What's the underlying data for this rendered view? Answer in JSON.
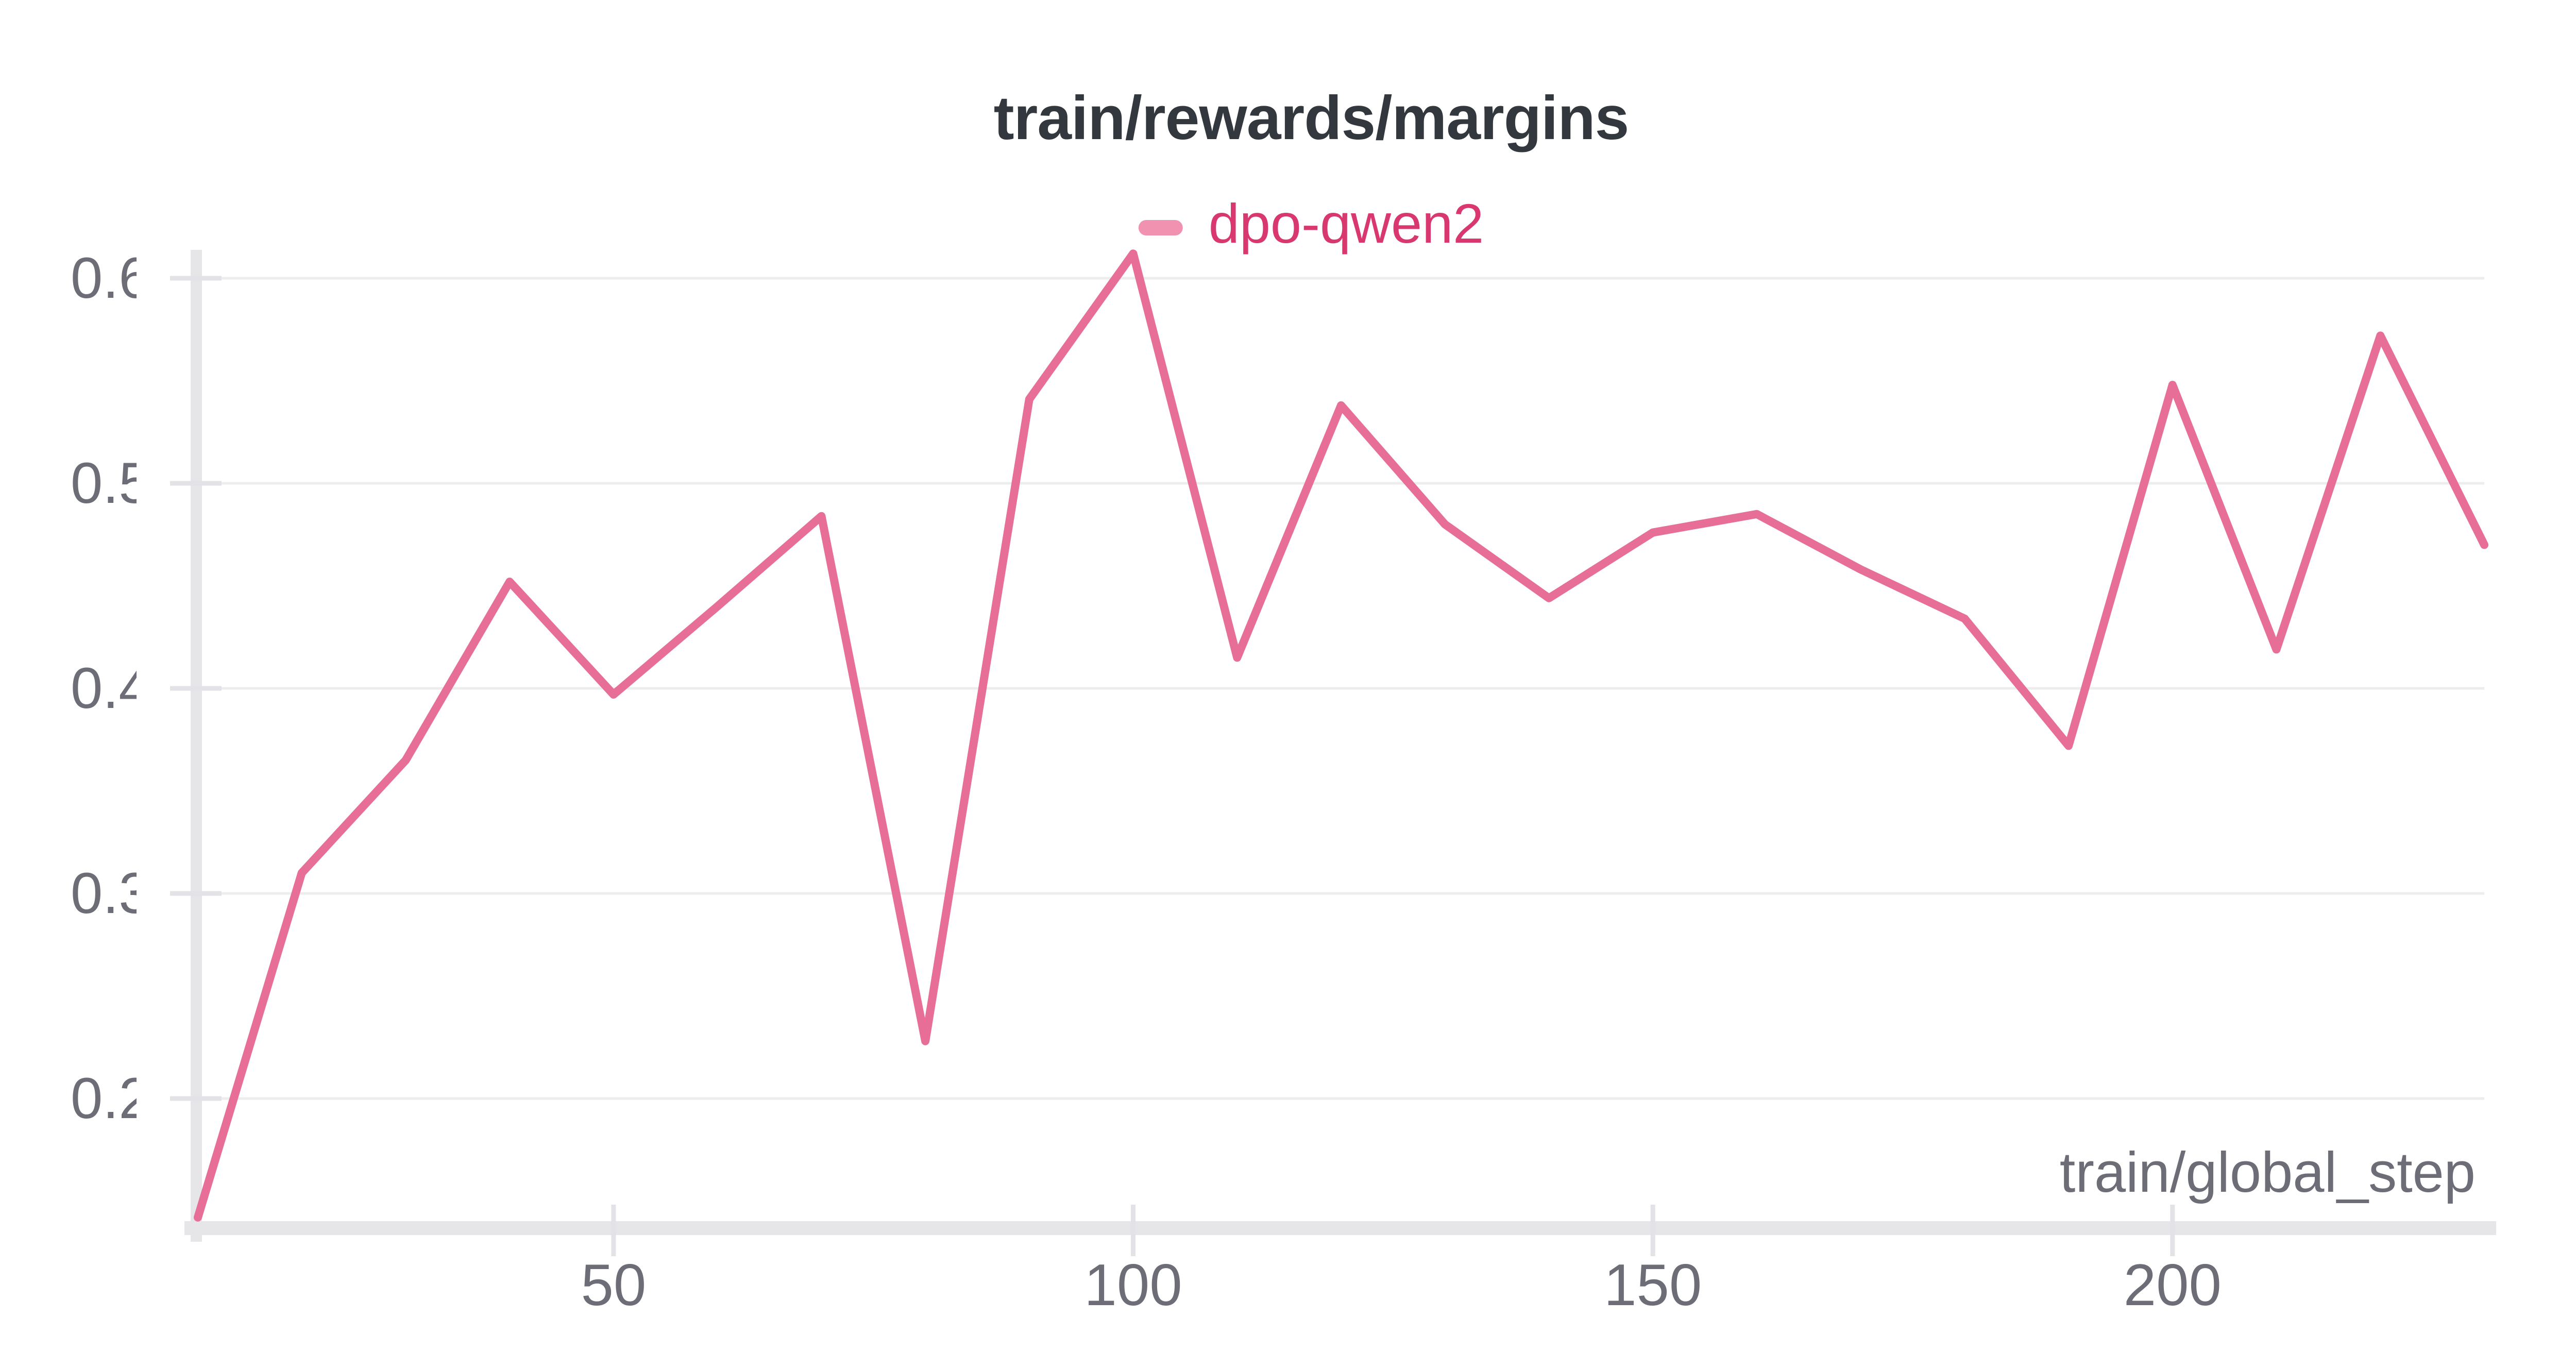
{
  "panel": {
    "title": "train/rewards/margins"
  },
  "legend": {
    "series_label": "dpo-qwen2"
  },
  "axis": {
    "x_title": "train/global_step"
  },
  "colors": {
    "background": "#FFFFFF",
    "title_text": "#33383E",
    "axis_text": "#6D6D78",
    "legend_text": "#D8386F",
    "legend_swatch": "#F192B1",
    "line": "#E66E97",
    "gridline": "#EDEDEF",
    "tick_mark": "#E2E2E7",
    "axis_band": "#E6E6E8"
  },
  "chart_data": {
    "type": "line",
    "title": "train/rewards/margins",
    "xlabel": "train/global_step",
    "ylabel": "",
    "grid": "horizontal-only",
    "legend_position": "top-center",
    "xlim": [
      10,
      230
    ],
    "ylim": [
      0.14,
      0.614
    ],
    "x_ticks": [
      50,
      100,
      150,
      200
    ],
    "y_ticks": [
      0.2,
      0.3,
      0.4,
      0.5,
      0.6
    ],
    "series": [
      {
        "name": "dpo-qwen2",
        "x": [
          10,
          20,
          30,
          40,
          50,
          60,
          70,
          80,
          90,
          100,
          110,
          120,
          130,
          140,
          150,
          160,
          170,
          180,
          190,
          200,
          210,
          220,
          230
        ],
        "y": [
          0.142,
          0.31,
          0.365,
          0.452,
          0.397,
          0.44,
          0.484,
          0.228,
          0.541,
          0.612,
          0.415,
          0.538,
          0.48,
          0.444,
          0.476,
          0.485,
          0.458,
          0.434,
          0.372,
          0.548,
          0.419,
          0.572,
          0.47
        ]
      }
    ]
  }
}
